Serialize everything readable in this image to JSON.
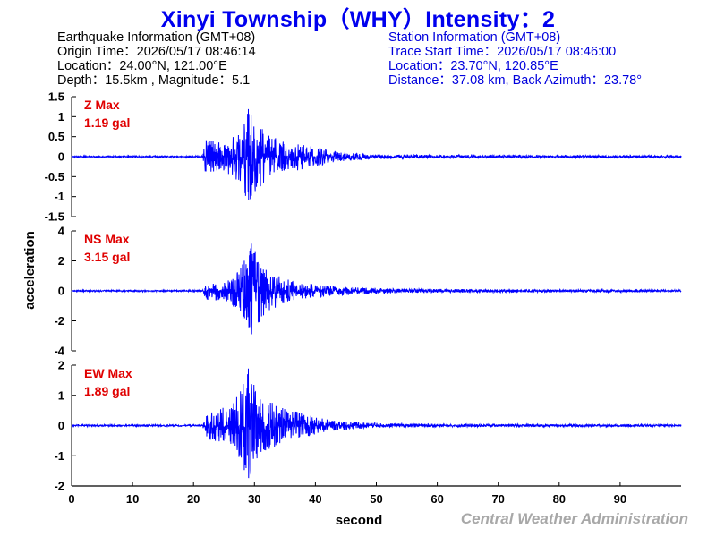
{
  "title": "Xinyi Township（WHY）Intensity：2",
  "earthquake_info": {
    "header": "Earthquake Information  (GMT+08)",
    "origin_time": "Origin Time：2026/05/17 08:46:14",
    "location": "Location：24.00°N, 121.00°E",
    "depth_magnitude": "Depth：15.5km , Magnitude：5.1"
  },
  "station_info": {
    "header": "Station Information  (GMT+08)",
    "trace_start": "Trace Start Time：2026/05/17 08:46:00",
    "location": "Location：23.70°N, 120.85°E",
    "distance_azimuth": "Distance：37.08 km, Back Azimuth：23.78°"
  },
  "credit": "Central Weather Administration",
  "chart_data": {
    "type": "line",
    "xlabel": "second",
    "ylabel": "acceleration",
    "xlim": [
      0,
      100
    ],
    "xticks": [
      0,
      10,
      20,
      30,
      40,
      50,
      60,
      70,
      80,
      90
    ],
    "line_color": "#0000ff",
    "label_color": "#e00000",
    "grid": false,
    "panels": [
      {
        "component": "Z",
        "max_label": "Z Max",
        "max_value": "1.19 gal",
        "peak": 1.19,
        "ylim": [
          -1.5,
          1.5
        ],
        "yticks": [
          -1.5,
          -1,
          -0.5,
          0,
          0.5,
          1,
          1.5
        ],
        "ytick_labels": [
          "-1.5",
          "-1",
          "-0.5",
          "0",
          "0.5",
          "1",
          "1.5"
        ],
        "envelope": [
          [
            0,
            0.02
          ],
          [
            21.5,
            0.02
          ],
          [
            22,
            0.45
          ],
          [
            24,
            0.38
          ],
          [
            26,
            0.45
          ],
          [
            28,
            0.75
          ],
          [
            29,
            1.19
          ],
          [
            30,
            0.95
          ],
          [
            32,
            0.55
          ],
          [
            35,
            0.4
          ],
          [
            38,
            0.32
          ],
          [
            40,
            0.24
          ],
          [
            45,
            0.1
          ],
          [
            50,
            0.06
          ],
          [
            60,
            0.045
          ],
          [
            80,
            0.035
          ],
          [
            100,
            0.03
          ]
        ]
      },
      {
        "component": "NS",
        "max_label": "NS Max",
        "max_value": "3.15 gal",
        "peak": 3.15,
        "ylim": [
          -4,
          4
        ],
        "yticks": [
          -4,
          -2,
          0,
          2,
          4
        ],
        "ytick_labels": [
          "-4",
          "-2",
          "0",
          "2",
          "4"
        ],
        "envelope": [
          [
            0,
            0.05
          ],
          [
            21.5,
            0.05
          ],
          [
            22,
            0.6
          ],
          [
            25,
            0.65
          ],
          [
            27,
            1.2
          ],
          [
            28.5,
            2.2
          ],
          [
            29.5,
            3.15
          ],
          [
            31,
            2.0
          ],
          [
            33,
            1.2
          ],
          [
            35,
            0.8
          ],
          [
            38,
            0.55
          ],
          [
            42,
            0.35
          ],
          [
            48,
            0.22
          ],
          [
            55,
            0.14
          ],
          [
            70,
            0.1
          ],
          [
            100,
            0.07
          ]
        ]
      },
      {
        "component": "EW",
        "max_label": "EW Max",
        "max_value": "1.89 gal",
        "peak": 1.89,
        "ylim": [
          -2,
          2
        ],
        "yticks": [
          -2,
          -1,
          0,
          1,
          2
        ],
        "ytick_labels": [
          "-2",
          "-1",
          "0",
          "1",
          "2"
        ],
        "envelope": [
          [
            0,
            0.03
          ],
          [
            21.5,
            0.03
          ],
          [
            22,
            0.4
          ],
          [
            24,
            0.55
          ],
          [
            26,
            0.65
          ],
          [
            28,
            1.3
          ],
          [
            29,
            1.89
          ],
          [
            30,
            1.3
          ],
          [
            32,
            0.85
          ],
          [
            35,
            0.55
          ],
          [
            38,
            0.4
          ],
          [
            42,
            0.2
          ],
          [
            48,
            0.1
          ],
          [
            55,
            0.06
          ],
          [
            70,
            0.045
          ],
          [
            100,
            0.035
          ]
        ]
      }
    ]
  }
}
